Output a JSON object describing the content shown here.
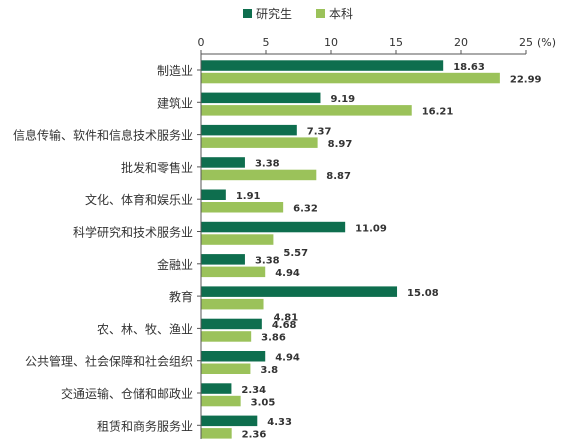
{
  "chart_data": {
    "type": "bar",
    "orientation": "horizontal",
    "x_unit": "(%)",
    "xlim": [
      0,
      25
    ],
    "x_ticks": [
      0,
      5,
      10,
      15,
      20,
      25
    ],
    "legend_position": "top",
    "grid": false,
    "categories": [
      "制造业",
      "建筑业",
      "信息传输、软件和信息技术服务业",
      "批发和零售业",
      "文化、体育和娱乐业",
      "科学研究和技术服务业",
      "金融业",
      "教育",
      "农、林、牧、渔业",
      "公共管理、社会保障和社会组织",
      "交通运输、仓储和邮政业",
      "租赁和商务服务业"
    ],
    "series": [
      {
        "name": "研究生",
        "color": "#0e6e4e",
        "values": [
          18.63,
          9.19,
          7.37,
          3.38,
          1.91,
          11.09,
          3.38,
          15.08,
          4.68,
          4.94,
          2.34,
          4.33
        ]
      },
      {
        "name": "本科",
        "color": "#9bc25a",
        "values": [
          22.99,
          16.21,
          8.97,
          8.87,
          6.32,
          5.57,
          4.94,
          4.81,
          3.86,
          3.8,
          3.05,
          2.36
        ]
      }
    ]
  }
}
